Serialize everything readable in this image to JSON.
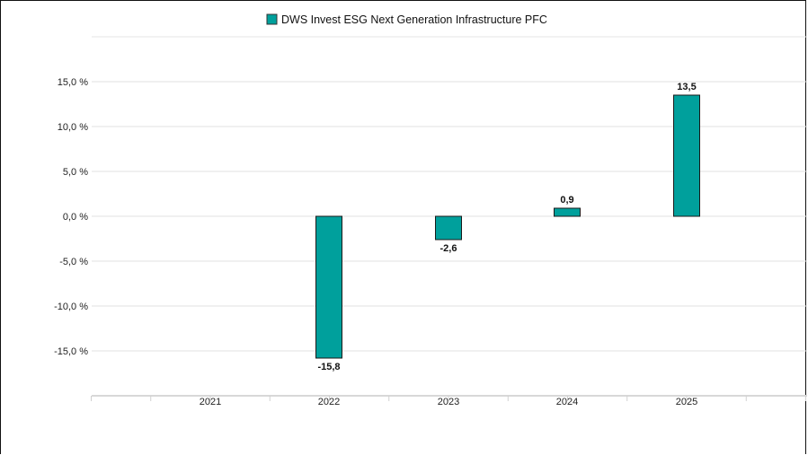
{
  "chart_data": {
    "type": "bar",
    "title": "",
    "xlabel": "",
    "ylabel": "",
    "categories": [
      "2021",
      "2022",
      "2023",
      "2024",
      "2025"
    ],
    "series": [
      {
        "name": "DWS Invest ESG Next Generation Infrastructure PFC",
        "color": "#00a09c",
        "values": [
          null,
          -15.8,
          -2.6,
          0.9,
          13.5
        ],
        "value_labels": [
          "",
          "-15,8",
          "-2,6",
          "0,9",
          "13,5"
        ]
      }
    ],
    "y_ticks": [
      15,
      10,
      5,
      0,
      -5,
      -10,
      -15
    ],
    "y_tick_labels": [
      "15,0 %",
      "10,0 %",
      "5,0 %",
      "0,0 %",
      "-5,0 %",
      "-10,0 %",
      "-15,0 %"
    ],
    "ylim": [
      -20,
      20
    ],
    "grid": true,
    "legend_position": "top-center"
  }
}
